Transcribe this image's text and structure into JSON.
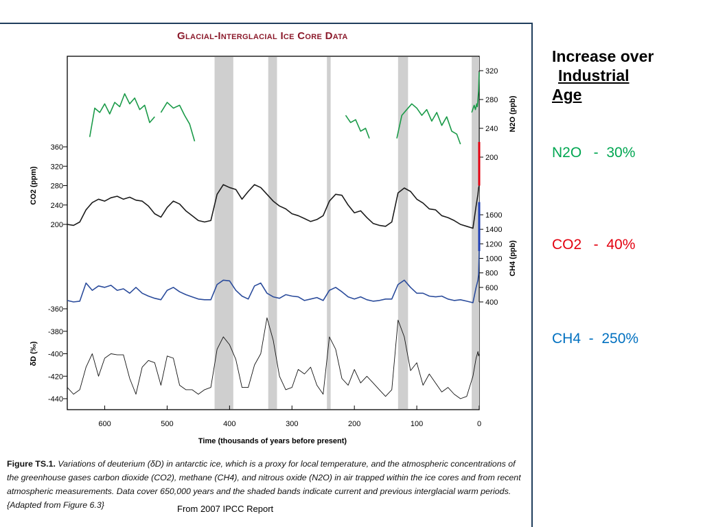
{
  "slide": {
    "side_heading_line1": "Increase over",
    "side_heading_line2": "Industrial",
    "side_heading_line3": "Age",
    "increases": [
      {
        "gas": "N2O",
        "text": "N2O   -  30%",
        "color": "#00a651"
      },
      {
        "gas": "CO2",
        "text": "CO2   -  40%",
        "color": "#e3000f"
      },
      {
        "gas": "CH4",
        "text": "CH4  -  250%",
        "color": "#0070c0"
      }
    ],
    "source_note": "From 2007 IPCC Report"
  },
  "figure": {
    "title": "Glacial-Interglacial Ice Core Data",
    "caption_lines": [
      "Variations of deuterium (δD) in antarctic ice, which is a proxy for local temperature, and the atmospheric concentrations of",
      "the greenhouse gases carbon dioxide (CO2), methane (CH4), and nitrous oxide (N2O) in air trapped within the ice cores and from recent",
      "atmospheric measurements. Data cover 650,000 years and the shaded bands indicate current and previous interglacial warm periods.",
      "{Adapted from Figure 6.3}"
    ],
    "caption_label": "Figure TS.1."
  },
  "chart_data": {
    "type": "line",
    "title": "Glacial-Interglacial Ice Core Data",
    "xlabel": "Time (thousands of years before present)",
    "x_reversed": true,
    "xlim": [
      660,
      0
    ],
    "x_ticks": [
      600,
      500,
      400,
      300,
      200,
      100,
      0
    ],
    "interglacial_bands": [
      [
        424,
        394
      ],
      [
        338,
        324
      ],
      [
        244,
        238
      ],
      [
        130,
        114
      ],
      [
        12,
        0
      ]
    ],
    "axes": {
      "n2o": {
        "label": "N2O (ppb)",
        "side": "right",
        "range": [
          200,
          320
        ],
        "ticks": [
          200,
          240,
          280,
          320
        ]
      },
      "co2": {
        "label": "CO2 (ppm)",
        "side": "left",
        "range": [
          200,
          360
        ],
        "ticks": [
          200,
          240,
          280,
          320,
          360
        ]
      },
      "ch4": {
        "label": "CH4 (ppb)",
        "side": "right",
        "range": [
          400,
          1600
        ],
        "ticks": [
          400,
          600,
          800,
          1000,
          1200,
          1400,
          1600
        ]
      },
      "dd": {
        "label": "δD (‰)",
        "side": "left",
        "range": [
          -440,
          -360
        ],
        "ticks": [
          -360,
          -380,
          -400,
          -420,
          -440
        ]
      }
    },
    "series": [
      {
        "key": "n2o",
        "color": "#1a9a48",
        "segments": [
          {
            "x": [
              624,
              616,
              608,
              600,
              592,
              584,
              576,
              568,
              560,
              552,
              544,
              536,
              528,
              520
            ],
            "y": [
              228,
              268,
              262,
              274,
              260,
              276,
              270,
              288,
              274,
              282,
              266,
              272,
              248,
              256
            ]
          },
          {
            "x": [
              510,
              500,
              490,
              480,
              472,
              464,
              456
            ],
            "y": [
              262,
              276,
              268,
              272,
              258,
              246,
              222
            ]
          },
          {
            "x": [
              214,
              206,
              198,
              190,
              182,
              176
            ],
            "y": [
              258,
              248,
              252,
              236,
              240,
              226
            ]
          },
          {
            "x": [
              132,
              124,
              116,
              108,
              100,
              92,
              84,
              76,
              68,
              60,
              52,
              44,
              36,
              30
            ],
            "y": [
              226,
              258,
              266,
              274,
              268,
              258,
              266,
              250,
              262,
              244,
              256,
              236,
              232,
              218
            ]
          },
          {
            "x": [
              12,
              8,
              6,
              4,
              3,
              2,
              1,
              0
            ],
            "y": [
              262,
              272,
              266,
              274,
              270,
              280,
              292,
              318
            ]
          }
        ]
      },
      {
        "key": "co2",
        "color": "#1a1a1a",
        "segments": [
          {
            "x": [
              660,
              650,
              640,
              630,
              620,
              610,
              600,
              590,
              580,
              570,
              560,
              550,
              540,
              530,
              520,
              510,
              500,
              490,
              480,
              470,
              460,
              450,
              440,
              430,
              420,
              410,
              400,
              390,
              380,
              370,
              360,
              350,
              340,
              330,
              320,
              310,
              300,
              290,
              280,
              270,
              260,
              250,
              240,
              230,
              220,
              210,
              200,
              190,
              180,
              170,
              160,
              150,
              140,
              130,
              120,
              110,
              100,
              90,
              80,
              70,
              60,
              50,
              40,
              30,
              20,
              10,
              5,
              2,
              1,
              0
            ],
            "y": [
              200,
              198,
              205,
              230,
              245,
              252,
              248,
              255,
              258,
              252,
              256,
              250,
              248,
              238,
              222,
              215,
              235,
              248,
              242,
              228,
              218,
              208,
              205,
              208,
              262,
              282,
              276,
              272,
              252,
              268,
              282,
              276,
              262,
              248,
              238,
              232,
              222,
              218,
              212,
              206,
              210,
              218,
              248,
              262,
              260,
              240,
              224,
              228,
              214,
              202,
              198,
              196,
              205,
              265,
              275,
              268,
              252,
              244,
              232,
              230,
              218,
              214,
              208,
              200,
              196,
              192,
              238,
              262,
              275,
              280
            ]
          },
          {
            "x": [
              0,
              0
            ],
            "y": [
              280,
              370
            ],
            "color": "#e3000f",
            "width": 3
          }
        ]
      },
      {
        "key": "ch4",
        "color": "#2a4b9b",
        "segments": [
          {
            "x": [
              660,
              650,
              640,
              630,
              620,
              610,
              600,
              590,
              580,
              570,
              560,
              550,
              540,
              530,
              520,
              510,
              500,
              490,
              480,
              470,
              460,
              450,
              440,
              430,
              420,
              410,
              400,
              390,
              380,
              370,
              360,
              350,
              340,
              330,
              320,
              310,
              300,
              290,
              280,
              270,
              260,
              250,
              240,
              230,
              220,
              210,
              200,
              190,
              180,
              170,
              160,
              150,
              140,
              130,
              120,
              110,
              100,
              90,
              80,
              70,
              60,
              50,
              40,
              30,
              20,
              10,
              5,
              2,
              1,
              0
            ],
            "y": [
              420,
              400,
              410,
              660,
              560,
              620,
              600,
              630,
              560,
              580,
              520,
              600,
              520,
              480,
              450,
              430,
              560,
              600,
              540,
              500,
              470,
              440,
              430,
              430,
              640,
              700,
              690,
              560,
              480,
              440,
              620,
              660,
              520,
              470,
              450,
              500,
              480,
              470,
              420,
              440,
              460,
              420,
              560,
              600,
              540,
              470,
              440,
              470,
              430,
              410,
              420,
              440,
              440,
              640,
              700,
              600,
              520,
              520,
              480,
              470,
              480,
              440,
              420,
              430,
              410,
              390,
              600,
              700,
              780,
              1100
            ]
          },
          {
            "x": [
              0,
              0
            ],
            "y": [
              1100,
              1775
            ],
            "color": "#1f3fb5",
            "width": 3
          }
        ]
      },
      {
        "key": "dd",
        "color": "#111111",
        "width": 0.9,
        "segments": [
          {
            "x": [
              660,
              650,
              640,
              630,
              620,
              610,
              600,
              590,
              580,
              570,
              560,
              550,
              540,
              530,
              520,
              510,
              500,
              490,
              480,
              470,
              460,
              450,
              440,
              430,
              420,
              410,
              400,
              390,
              380,
              370,
              360,
              350,
              340,
              330,
              320,
              310,
              300,
              290,
              280,
              270,
              260,
              250,
              240,
              230,
              220,
              210,
              200,
              190,
              180,
              170,
              160,
              150,
              140,
              130,
              120,
              110,
              100,
              90,
              80,
              70,
              60,
              50,
              40,
              30,
              20,
              10,
              5,
              2,
              1,
              0
            ],
            "y": [
              -430,
              -436,
              -432,
              -412,
              -400,
              -420,
              -404,
              -400,
              -401,
              -401,
              -422,
              -436,
              -412,
              -406,
              -408,
              -428,
              -402,
              -404,
              -428,
              -432,
              -432,
              -436,
              -432,
              -430,
              -396,
              -385,
              -392,
              -405,
              -430,
              -430,
              -410,
              -400,
              -368,
              -388,
              -420,
              -432,
              -430,
              -414,
              -418,
              -412,
              -428,
              -436,
              -385,
              -396,
              -422,
              -428,
              -414,
              -426,
              -420,
              -426,
              -432,
              -438,
              -432,
              -370,
              -385,
              -415,
              -408,
              -428,
              -418,
              -426,
              -434,
              -430,
              -436,
              -440,
              -438,
              -420,
              -404,
              -398,
              -402,
              -400
            ]
          }
        ]
      }
    ]
  }
}
